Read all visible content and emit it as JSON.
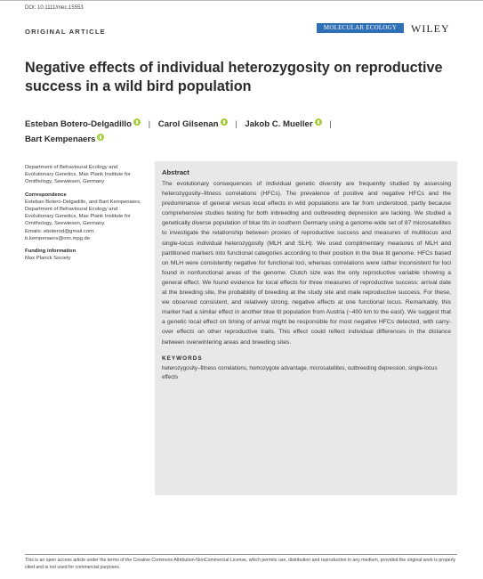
{
  "header": {
    "doi": "DOI: 10.1111/mec.15553",
    "article_type": "ORIGINAL ARTICLE",
    "journal": "MOLECULAR ECOLOGY",
    "publisher": "WILEY"
  },
  "title": "Negative effects of individual heterozygosity on reproductive success in a wild bird population",
  "authors": [
    {
      "name": "Esteban Botero-Delgadillo"
    },
    {
      "name": "Carol Gilsenan"
    },
    {
      "name": "Jakob C. Mueller"
    },
    {
      "name": "Bart Kempenaers"
    }
  ],
  "sidebar": {
    "affiliation": "Department of Behavioural Ecology and Evolutionary Genetics, Max Plank Institute for Ornithology, Seewiesen, Germany",
    "correspondence_label": "Correspondence",
    "correspondence": "Esteban Botero-Delgadillo, and Bart Kempenaers, Department of Behavioural Ecology and Evolutionary Genetics, Max Plank Institute for Ornithology, Seewiesen, Germany.",
    "emails": "Emails: eboterod@gmail.com; b.kempenaers@orn.mpg.de",
    "funding_label": "Funding information",
    "funding": "Max Planck Society"
  },
  "abstract": {
    "heading": "Abstract",
    "text": "The evolutionary consequences of individual genetic diversity are frequently studied by assessing heterozygosity–fitness correlations (HFCs). The prevalence of positive and negative HFCs and the predominance of general versus local effects in wild populations are far from understood, partly because comprehensive studies testing for both inbreeding and outbreeding depression are lacking. We studied a genetically diverse population of blue tits in southern Germany using a genome-wide set of 87 microsatellites to investigate the relationship between proxies of reproductive success and measures of multilocus and single-locus individual heterozygosity (MLH and SLH). We used complimentary measures of MLH and partitioned markers into functional categories according to their position in the blue tit genome. HFCs based on MLH were consistently negative for functional loci, whereas correlations were rather inconsistent for loci found in nonfunctional areas of the genome. Clutch size was the only reproductive variable showing a general effect. We found evidence for local effects for three measures of reproductive success: arrival date at the breeding site, the probability of breeding at the study site and male reproductive success. For these, we observed consistent, and relatively strong, negative effects at one functional locus. Remarkably, this marker had a similar effect in another blue tit population from Austria (~400 km to the east). We suggest that a genetic local effect on timing of arrival might be responsible for most negative HFCs detected, with carry-over effects on other reproductive traits. This effect could reflect individual differences in the distance between overwintering areas and breeding sites.",
    "keywords_heading": "KEYWORDS",
    "keywords": "heterozygosity–fitness correlations, homozygote advantage, microsatellites, outbreeding depression, single-locus effects"
  },
  "footer": {
    "license": "This is an open access article under the terms of the Creative Commons Attribution-NonCommercial License, which permits use, distribution and reproduction in any medium, provided the original work is properly cited and is not used for commercial purposes."
  }
}
